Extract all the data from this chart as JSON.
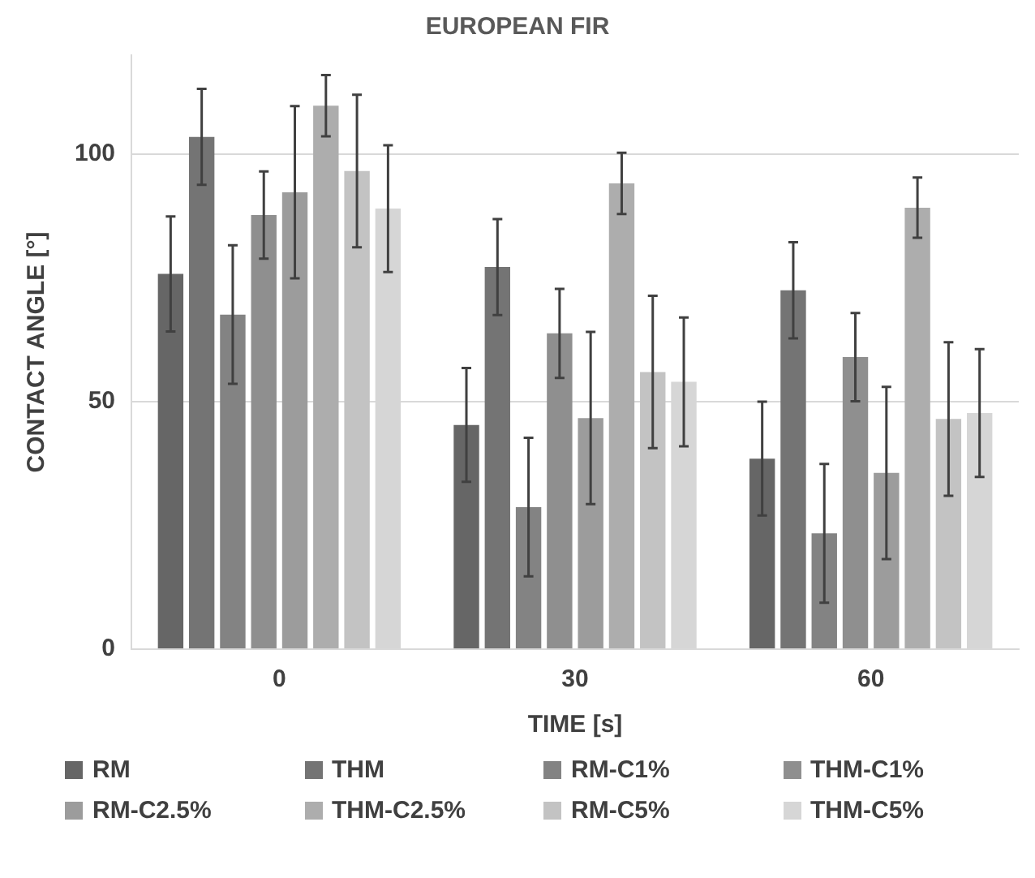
{
  "chart_data": {
    "type": "bar",
    "title": "EUROPEAN FIR",
    "xlabel": "TIME [s]",
    "ylabel": "CONTACT ANGLE [°]",
    "categories": [
      "0",
      "30",
      "60"
    ],
    "ylim": [
      0,
      120
    ],
    "yticks": [
      0,
      {
        "value": 50,
        "label": "50"
      },
      100
    ],
    "grid": "y",
    "legend": "bottom",
    "series": [
      {
        "name": "RM",
        "color": "#666666",
        "values": [
          75.8,
          45.3,
          38.5
        ],
        "errors": [
          11.6,
          11.5,
          11.5
        ]
      },
      {
        "name": "THM",
        "color": "#747474",
        "values": [
          103.5,
          77.2,
          72.5
        ],
        "errors": [
          9.7,
          9.7,
          9.7
        ]
      },
      {
        "name": "RM-C1%",
        "color": "#838383",
        "values": [
          67.6,
          28.7,
          23.4
        ],
        "errors": [
          14,
          14,
          14
        ]
      },
      {
        "name": "THM-C1%",
        "color": "#8f8f8f",
        "values": [
          87.7,
          63.8,
          59
        ],
        "errors": [
          8.8,
          9,
          8.9
        ]
      },
      {
        "name": "RM-C2.5%",
        "color": "#9c9c9c",
        "values": [
          92.3,
          46.7,
          35.6
        ],
        "errors": [
          17.4,
          17.4,
          17.4
        ]
      },
      {
        "name": "THM-C2.5%",
        "color": "#adadad",
        "values": [
          109.8,
          94.1,
          89.2
        ],
        "errors": [
          6.2,
          6.2,
          6.1
        ]
      },
      {
        "name": "RM-C5%",
        "color": "#c3c3c3",
        "values": [
          96.6,
          56,
          46.5
        ],
        "errors": [
          15.4,
          15.4,
          15.5
        ]
      },
      {
        "name": "THM-C5%",
        "color": "#d6d6d6",
        "values": [
          89,
          54,
          47.7
        ],
        "errors": [
          12.8,
          13,
          12.9
        ]
      }
    ]
  }
}
